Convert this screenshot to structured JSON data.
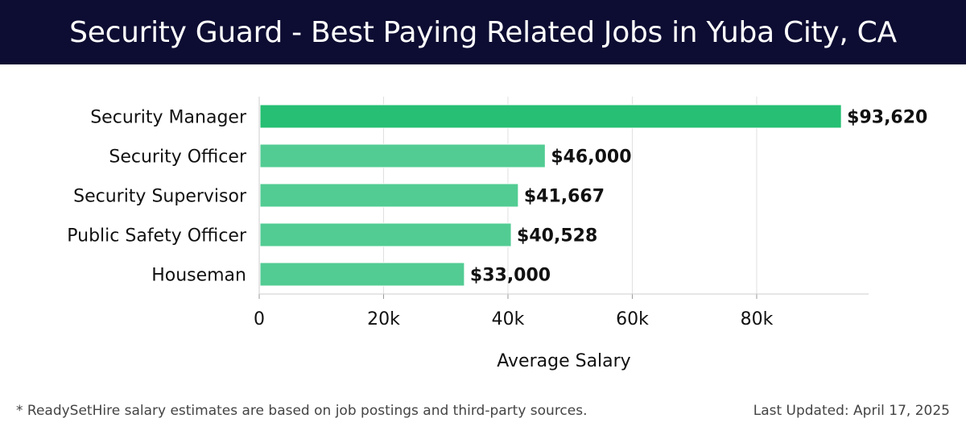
{
  "header": {
    "title": "Security Guard - Best Paying Related Jobs in Yuba City, CA"
  },
  "footer": {
    "note": "* ReadySetHire salary estimates are based on job postings and third-party sources.",
    "updated": "Last Updated: April 17, 2025"
  },
  "colors": {
    "header_bg": "#0d0d33",
    "bar_top": "#26bf73",
    "bar": "#52cc93",
    "grid": "#e0e0e0",
    "text": "#111111"
  },
  "chart_data": {
    "type": "bar",
    "orientation": "horizontal",
    "categories": [
      "Security Manager",
      "Security Officer",
      "Security Supervisor",
      "Public Safety Officer",
      "Houseman"
    ],
    "values": [
      93620,
      46000,
      41667,
      40528,
      33000
    ],
    "value_labels": [
      "$93,620",
      "$46,000",
      "$41,667",
      "$40,528",
      "$33,000"
    ],
    "xlabel": "Average Salary",
    "ylabel": "",
    "xlim": [
      0,
      98000
    ],
    "xticks": [
      0,
      20000,
      40000,
      60000,
      80000
    ],
    "xtick_labels": [
      "0",
      "20k",
      "40k",
      "60k",
      "80k"
    ],
    "grid": true
  }
}
